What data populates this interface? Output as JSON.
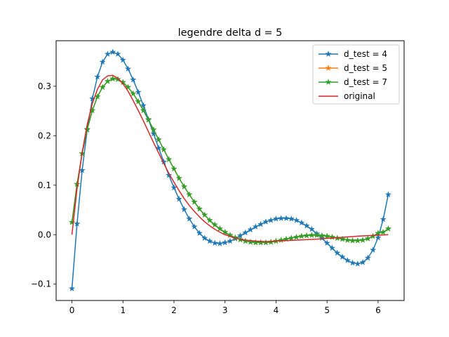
{
  "chart_data": {
    "type": "line",
    "title": "legendre delta d = 5",
    "xlabel": "",
    "ylabel": "",
    "xlim": [
      -0.31,
      6.51
    ],
    "ylim": [
      -0.133,
      0.392
    ],
    "xticks": [
      0,
      1,
      2,
      3,
      4,
      5,
      6
    ],
    "xtick_labels": [
      "0",
      "1",
      "2",
      "3",
      "4",
      "5",
      "6"
    ],
    "yticks": [
      -0.1,
      0.0,
      0.1,
      0.2,
      0.3
    ],
    "ytick_labels": [
      "−0.1",
      "0.0",
      "0.1",
      "0.2",
      "0.3"
    ],
    "grid": false,
    "legend_position": "top-right",
    "series": [
      {
        "name": "d_test = 4",
        "color": "#1f77b4",
        "marker": "star",
        "x": [
          0.0,
          0.1,
          0.2,
          0.3,
          0.4,
          0.5,
          0.6,
          0.7,
          0.8,
          0.9,
          1.0,
          1.1,
          1.2,
          1.3,
          1.4,
          1.5,
          1.6,
          1.7,
          1.8,
          1.9,
          2.0,
          2.1,
          2.2,
          2.3,
          2.4,
          2.5,
          2.6,
          2.7,
          2.8,
          2.9,
          3.0,
          3.1,
          3.2,
          3.3,
          3.4,
          3.5,
          3.6,
          3.7,
          3.8,
          3.9,
          4.0,
          4.1,
          4.2,
          4.3,
          4.4,
          4.5,
          4.6,
          4.7,
          4.8,
          4.9,
          5.0,
          5.1,
          5.2,
          5.3,
          5.4,
          5.5,
          5.6,
          5.7,
          5.8,
          5.9,
          6.0,
          6.1,
          6.2
        ],
        "y": [
          -0.109,
          0.022,
          0.13,
          0.212,
          0.275,
          0.319,
          0.349,
          0.365,
          0.369,
          0.365,
          0.353,
          0.335,
          0.313,
          0.288,
          0.261,
          0.233,
          0.204,
          0.175,
          0.147,
          0.12,
          0.095,
          0.072,
          0.051,
          0.032,
          0.016,
          0.003,
          -0.007,
          -0.013,
          -0.017,
          -0.018,
          -0.016,
          -0.013,
          -0.008,
          -0.002,
          0.004,
          0.01,
          0.016,
          0.021,
          0.026,
          0.029,
          0.032,
          0.033,
          0.033,
          0.032,
          0.029,
          0.024,
          0.018,
          0.011,
          0.002,
          -0.007,
          -0.017,
          -0.027,
          -0.037,
          -0.045,
          -0.052,
          -0.057,
          -0.059,
          -0.056,
          -0.047,
          -0.031,
          -0.006,
          0.031,
          0.081
        ]
      },
      {
        "name": "d_test = 5",
        "color": "#ff7f0e",
        "marker": "star",
        "x": [
          0.0,
          0.1,
          0.2,
          0.3,
          0.4,
          0.5,
          0.6,
          0.7,
          0.8,
          0.9,
          1.0,
          1.1,
          1.2,
          1.3,
          1.4,
          1.5,
          1.6,
          1.7,
          1.8,
          1.9,
          2.0,
          2.1,
          2.2,
          2.3,
          2.4,
          2.5,
          2.6,
          2.7,
          2.8,
          2.9,
          3.0,
          3.1,
          3.2,
          3.3,
          3.4,
          3.5,
          3.6,
          3.7,
          3.8,
          3.9,
          4.0,
          4.1,
          4.2,
          4.3,
          4.4,
          4.5,
          4.6,
          4.7,
          4.8,
          4.9,
          5.0,
          5.1,
          5.2,
          5.3,
          5.4,
          5.5,
          5.6,
          5.7,
          5.8,
          5.9,
          6.0,
          6.1,
          6.2
        ],
        "y": [
          0.025,
          0.102,
          0.164,
          0.213,
          0.251,
          0.279,
          0.298,
          0.31,
          0.315,
          0.314,
          0.308,
          0.298,
          0.285,
          0.269,
          0.251,
          0.232,
          0.212,
          0.192,
          0.172,
          0.152,
          0.133,
          0.114,
          0.097,
          0.081,
          0.066,
          0.052,
          0.04,
          0.029,
          0.02,
          0.012,
          0.005,
          -0.001,
          -0.006,
          -0.01,
          -0.013,
          -0.015,
          -0.016,
          -0.016,
          -0.016,
          -0.015,
          -0.013,
          -0.011,
          -0.009,
          -0.007,
          -0.005,
          -0.003,
          -0.002,
          -0.001,
          -0.001,
          -0.002,
          -0.003,
          -0.005,
          -0.007,
          -0.009,
          -0.011,
          -0.012,
          -0.012,
          -0.011,
          -0.008,
          -0.003,
          0.003,
          0.005,
          0.012
        ]
      },
      {
        "name": "d_test = 7",
        "color": "#2ca02c",
        "marker": "star",
        "x": [
          0.0,
          0.1,
          0.2,
          0.3,
          0.4,
          0.5,
          0.6,
          0.7,
          0.8,
          0.9,
          1.0,
          1.1,
          1.2,
          1.3,
          1.4,
          1.5,
          1.6,
          1.7,
          1.8,
          1.9,
          2.0,
          2.1,
          2.2,
          2.3,
          2.4,
          2.5,
          2.6,
          2.7,
          2.8,
          2.9,
          3.0,
          3.1,
          3.2,
          3.3,
          3.4,
          3.5,
          3.6,
          3.7,
          3.8,
          3.9,
          4.0,
          4.1,
          4.2,
          4.3,
          4.4,
          4.5,
          4.6,
          4.7,
          4.8,
          4.9,
          5.0,
          5.1,
          5.2,
          5.3,
          5.4,
          5.5,
          5.6,
          5.7,
          5.8,
          5.9,
          6.0,
          6.1,
          6.2
        ],
        "y": [
          0.025,
          0.102,
          0.164,
          0.213,
          0.251,
          0.279,
          0.298,
          0.31,
          0.315,
          0.314,
          0.308,
          0.298,
          0.285,
          0.269,
          0.251,
          0.232,
          0.212,
          0.192,
          0.172,
          0.152,
          0.133,
          0.114,
          0.097,
          0.081,
          0.066,
          0.052,
          0.04,
          0.029,
          0.02,
          0.012,
          0.005,
          -0.001,
          -0.006,
          -0.01,
          -0.013,
          -0.015,
          -0.016,
          -0.016,
          -0.016,
          -0.015,
          -0.013,
          -0.011,
          -0.009,
          -0.007,
          -0.005,
          -0.003,
          -0.002,
          -0.001,
          -0.001,
          -0.002,
          -0.003,
          -0.005,
          -0.007,
          -0.009,
          -0.011,
          -0.012,
          -0.012,
          -0.011,
          -0.008,
          -0.003,
          0.003,
          0.005,
          0.012
        ]
      },
      {
        "name": "original",
        "color": "#d62728",
        "marker": "none",
        "x": [
          0.0,
          0.1,
          0.2,
          0.3,
          0.4,
          0.5,
          0.6,
          0.7,
          0.8,
          0.9,
          1.0,
          1.1,
          1.2,
          1.3,
          1.4,
          1.5,
          1.6,
          1.7,
          1.8,
          1.9,
          2.0,
          2.1,
          2.2,
          2.3,
          2.4,
          2.5,
          2.6,
          2.7,
          2.8,
          2.9,
          3.0,
          3.2,
          3.4,
          3.6,
          3.8,
          4.0,
          4.4,
          4.8,
          5.2,
          5.6,
          6.0,
          6.2
        ],
        "y": [
          0.0,
          0.093,
          0.166,
          0.223,
          0.265,
          0.294,
          0.313,
          0.321,
          0.322,
          0.316,
          0.305,
          0.29,
          0.271,
          0.251,
          0.23,
          0.208,
          0.186,
          0.165,
          0.144,
          0.124,
          0.106,
          0.089,
          0.073,
          0.059,
          0.047,
          0.036,
          0.026,
          0.018,
          0.011,
          0.005,
          0.0,
          -0.007,
          -0.011,
          -0.013,
          -0.014,
          -0.013,
          -0.011,
          -0.009,
          -0.006,
          -0.003,
          -0.001,
          0.0
        ]
      }
    ]
  }
}
